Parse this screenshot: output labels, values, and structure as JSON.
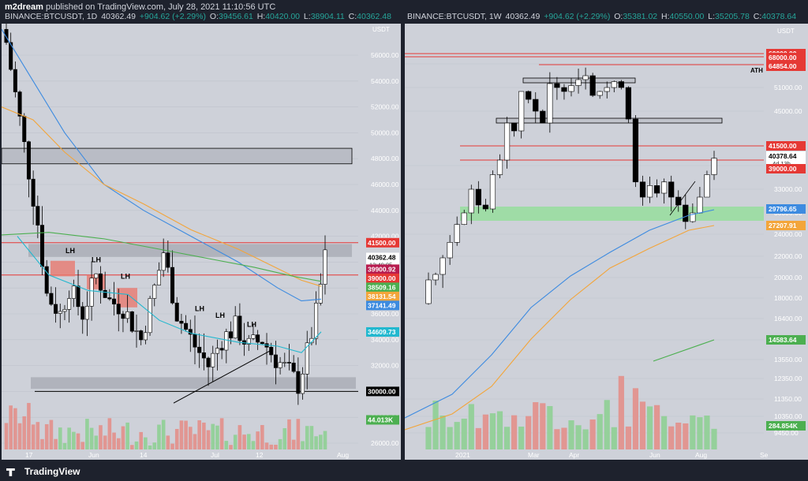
{
  "header": {
    "line1_user": "m2dream",
    "line1_rest": "published on TradingView.com, July 28, 2021 11:10:56 UTC",
    "footer_brand": "TradingView"
  },
  "colors": {
    "bg": "#1e222d",
    "panel": "#ced1d9",
    "up": "#ffffff",
    "down": "#000000",
    "red_line": "#e53935",
    "blue_ma": "#3d8be0",
    "orange_ma": "#f3a53a",
    "green_ma": "#4caf50",
    "cyan_ma": "#22b8cf"
  },
  "chart_data": [
    {
      "type": "candlestick",
      "symbol": "BINANCE:BTCUSDT, 1D",
      "title_fields": {
        "close": "40362.49",
        "change": "+904.62 (+2.29%)",
        "o": "39456.61",
        "h": "40420.00",
        "l": "38904.11",
        "c": "40362.48"
      },
      "y_axis_unit": "USDT",
      "y_ticks": [
        "56000.00",
        "54000.00",
        "52000.00",
        "50000.00",
        "48000.00",
        "46000.00",
        "44000.00",
        "42000.00",
        "40000.00",
        "38000.00",
        "36000.00",
        "34000.00",
        "32000.00",
        "30000.00",
        "28000.00",
        "26000.00"
      ],
      "x_ticks": [
        "17",
        "Jun",
        "14",
        "Jul",
        "12",
        "Aug"
      ],
      "price_labels": [
        {
          "text": "41500.00",
          "price": 41500,
          "color": "#e53935"
        },
        {
          "text": "40362.48",
          "price": 40362,
          "color": "#ffffff",
          "sub": "12:49:05"
        },
        {
          "text": "39900.92",
          "price": 39450,
          "color": "#b71c4f"
        },
        {
          "text": "39000.00",
          "price": 38750,
          "color": "#e53935"
        },
        {
          "text": "38509.16",
          "price": 38050,
          "color": "#4caf50"
        },
        {
          "text": "38131.54",
          "price": 37350,
          "color": "#f3a53a"
        },
        {
          "text": "37141.49",
          "price": 36650,
          "color": "#3d8be0"
        },
        {
          "text": "34609.73",
          "price": 34600,
          "color": "#22b8cf"
        },
        {
          "text": "30000.00",
          "price": 30000,
          "color": "#000000"
        },
        {
          "text": "44.013K",
          "price": 27800,
          "color": "#4caf50"
        }
      ],
      "annotations": [
        "LH",
        "LH",
        "LH",
        "LH",
        "LH",
        "LH",
        "LH"
      ]
    },
    {
      "type": "candlestick",
      "symbol": "BINANCE:BTCUSDT, 1W",
      "title_fields": {
        "close": "40362.49",
        "change": "+904.62 (+2.29%)",
        "o": "35381.02",
        "h": "40550.00",
        "l": "35205.78",
        "c": "40378.64"
      },
      "y_axis_unit": "USDT",
      "y_ticks": [
        "63000.00",
        "57000.00",
        "51000.00",
        "45000.00",
        "36000.00",
        "33000.00",
        "30000.00",
        "24000.00",
        "22000.00",
        "20000.00",
        "18000.00",
        "16400.00",
        "15000.00",
        "13550.00",
        "12350.00",
        "11350.00",
        "10350.00",
        "9450.00",
        "8650.00"
      ],
      "x_ticks": [
        "2021",
        "Mar",
        "Apr",
        "Jun",
        "Aug",
        "Se"
      ],
      "price_labels": [
        {
          "text": "69000.00",
          "color": "#e53935"
        },
        {
          "text": "68000.00",
          "color": "#e53935"
        },
        {
          "text": "64854.00",
          "color": "#e53935"
        },
        {
          "text": "41500.00",
          "color": "#e53935"
        },
        {
          "text": "40378.64",
          "color": "#ffffff",
          "sub": "4d 13h"
        },
        {
          "text": "39000.00",
          "color": "#e53935"
        },
        {
          "text": "29796.65",
          "color": "#3d8be0"
        },
        {
          "text": "27207.91",
          "color": "#f3a53a"
        },
        {
          "text": "14583.64",
          "color": "#4caf50"
        },
        {
          "text": "284.854K",
          "color": "#4caf50"
        }
      ],
      "annotations": [
        "ATH"
      ]
    }
  ]
}
